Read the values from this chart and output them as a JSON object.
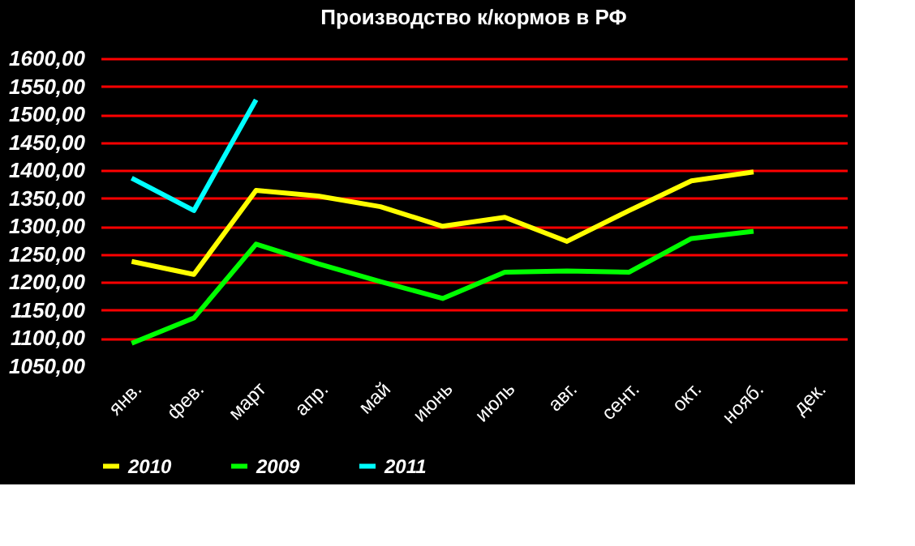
{
  "chart_data": {
    "type": "line",
    "title": "Производство к/кормов в РФ",
    "categories": [
      "янв.",
      "фев.",
      "март",
      "апр.",
      "май",
      "июнь",
      "июль",
      "авг.",
      "сент.",
      "окт.",
      "нояб.",
      "дек."
    ],
    "series": [
      {
        "name": "2010",
        "color": "#ffff00",
        "values": [
          1237,
          1214,
          1364,
          1354,
          1335,
          1300,
          1316,
          1273,
          1328,
          1381,
          1397,
          null
        ]
      },
      {
        "name": "2009",
        "color": "#00ff00",
        "values": [
          1091,
          1136,
          1268,
          1233,
          1201,
          1171,
          1218,
          1220,
          1218,
          1278,
          1291,
          null
        ]
      },
      {
        "name": "2011",
        "color": "#00ffff",
        "values": [
          1386,
          1328,
          1526,
          null,
          null,
          null,
          null,
          null,
          null,
          null,
          null,
          null
        ]
      }
    ],
    "ylim": [
      1050,
      1600
    ],
    "yticks": [
      {
        "value": 1050,
        "label": "1050,00"
      },
      {
        "value": 1100,
        "label": "1100,00"
      },
      {
        "value": 1150,
        "label": "1150,00"
      },
      {
        "value": 1200,
        "label": "1200,00"
      },
      {
        "value": 1250,
        "label": "1250,00"
      },
      {
        "value": 1300,
        "label": "1300,00"
      },
      {
        "value": 1350,
        "label": "1350,00"
      },
      {
        "value": 1400,
        "label": "1400,00"
      },
      {
        "value": 1450,
        "label": "1450,00"
      },
      {
        "value": 1500,
        "label": "1500,00"
      },
      {
        "value": 1550,
        "label": "1550,00"
      },
      {
        "value": 1600,
        "label": "1600,00"
      }
    ],
    "grid": "y",
    "legend": "bottom",
    "marker": "none",
    "line_style": "solid"
  }
}
